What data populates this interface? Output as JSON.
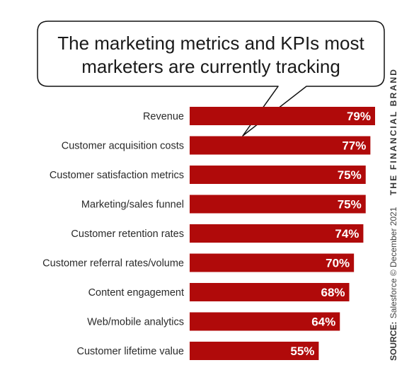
{
  "chart_data": {
    "type": "bar",
    "orientation": "horizontal",
    "title_lines": [
      "The marketing metrics and KPIs most",
      "marketers are currently tracking"
    ],
    "categories": [
      "Revenue",
      "Customer acquisition costs",
      "Customer satisfaction metrics",
      "Marketing/sales funnel",
      "Customer retention rates",
      "Customer referral rates/volume",
      "Content engagement",
      "Web/mobile analytics",
      "Customer lifetime value"
    ],
    "values": [
      79,
      77,
      75,
      75,
      74,
      70,
      68,
      64,
      55
    ],
    "value_labels": [
      "79%",
      "77%",
      "75%",
      "75%",
      "74%",
      "70%",
      "68%",
      "64%",
      "55%"
    ],
    "xlim": [
      0,
      79
    ],
    "grid": false,
    "bar_color": "#b00a0a"
  },
  "source": {
    "label": "SOURCE:",
    "text": " Salesforce © December 2021",
    "brand": "THE FINANCIAL BRAND"
  }
}
